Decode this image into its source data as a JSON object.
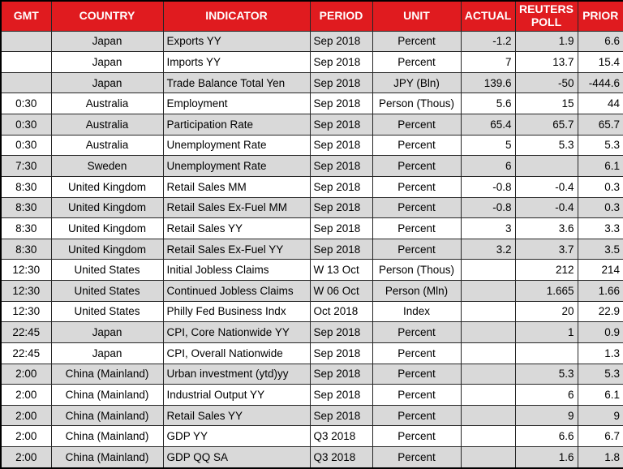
{
  "colors": {
    "header_bg": "#E01B1F",
    "header_text": "#FFFFFF",
    "row_bg": "#FFFFFF",
    "row_alt_bg": "#D9D9D9",
    "border": "#262626"
  },
  "table": {
    "columns": [
      {
        "key": "gmt",
        "label": "GMT"
      },
      {
        "key": "country",
        "label": "COUNTRY"
      },
      {
        "key": "indicator",
        "label": "INDICATOR"
      },
      {
        "key": "period",
        "label": "PERIOD"
      },
      {
        "key": "unit",
        "label": "UNIT"
      },
      {
        "key": "actual",
        "label": "ACTUAL"
      },
      {
        "key": "poll",
        "label": "REUTERS POLL"
      },
      {
        "key": "prior",
        "label": "PRIOR"
      }
    ],
    "rows": [
      {
        "gmt": "",
        "country": "Japan",
        "indicator": "Exports YY",
        "period": "Sep 2018",
        "unit": "Percent",
        "actual": "-1.2",
        "poll": "1.9",
        "prior": "6.6"
      },
      {
        "gmt": "",
        "country": "Japan",
        "indicator": "Imports YY",
        "period": "Sep 2018",
        "unit": "Percent",
        "actual": "7",
        "poll": "13.7",
        "prior": "15.4"
      },
      {
        "gmt": "",
        "country": "Japan",
        "indicator": "Trade Balance Total Yen",
        "period": "Sep 2018",
        "unit": "JPY (Bln)",
        "actual": "139.6",
        "poll": "-50",
        "prior": "-444.6"
      },
      {
        "gmt": "0:30",
        "country": "Australia",
        "indicator": "Employment",
        "period": "Sep 2018",
        "unit": "Person (Thous)",
        "actual": "5.6",
        "poll": "15",
        "prior": "44"
      },
      {
        "gmt": "0:30",
        "country": "Australia",
        "indicator": "Participation Rate",
        "period": "Sep 2018",
        "unit": "Percent",
        "actual": "65.4",
        "poll": "65.7",
        "prior": "65.7"
      },
      {
        "gmt": "0:30",
        "country": "Australia",
        "indicator": "Unemployment Rate",
        "period": "Sep 2018",
        "unit": "Percent",
        "actual": "5",
        "poll": "5.3",
        "prior": "5.3"
      },
      {
        "gmt": "7:30",
        "country": "Sweden",
        "indicator": "Unemployment Rate",
        "period": "Sep 2018",
        "unit": "Percent",
        "actual": "6",
        "poll": "",
        "prior": "6.1"
      },
      {
        "gmt": "8:30",
        "country": "United Kingdom",
        "indicator": "Retail Sales MM",
        "period": "Sep 2018",
        "unit": "Percent",
        "actual": "-0.8",
        "poll": "-0.4",
        "prior": "0.3"
      },
      {
        "gmt": "8:30",
        "country": "United Kingdom",
        "indicator": "Retail Sales Ex-Fuel MM",
        "period": "Sep 2018",
        "unit": "Percent",
        "actual": "-0.8",
        "poll": "-0.4",
        "prior": "0.3"
      },
      {
        "gmt": "8:30",
        "country": "United Kingdom",
        "indicator": "Retail Sales YY",
        "period": "Sep 2018",
        "unit": "Percent",
        "actual": "3",
        "poll": "3.6",
        "prior": "3.3"
      },
      {
        "gmt": "8:30",
        "country": "United Kingdom",
        "indicator": "Retail Sales Ex-Fuel YY",
        "period": "Sep 2018",
        "unit": "Percent",
        "actual": "3.2",
        "poll": "3.7",
        "prior": "3.5"
      },
      {
        "gmt": "12:30",
        "country": "United States",
        "indicator": "Initial Jobless Claims",
        "period": "W 13 Oct",
        "unit": "Person (Thous)",
        "actual": "",
        "poll": "212",
        "prior": "214"
      },
      {
        "gmt": "12:30",
        "country": "United States",
        "indicator": "Continued Jobless Claims",
        "period": "W 06 Oct",
        "unit": "Person (Mln)",
        "actual": "",
        "poll": "1.665",
        "prior": "1.66"
      },
      {
        "gmt": "12:30",
        "country": "United States",
        "indicator": "Philly Fed Business Indx",
        "period": "Oct 2018",
        "unit": "Index",
        "actual": "",
        "poll": "20",
        "prior": "22.9"
      },
      {
        "gmt": "22:45",
        "country": "Japan",
        "indicator": "CPI, Core Nationwide YY",
        "period": "Sep 2018",
        "unit": "Percent",
        "actual": "",
        "poll": "1",
        "prior": "0.9"
      },
      {
        "gmt": "22:45",
        "country": "Japan",
        "indicator": "CPI, Overall Nationwide",
        "period": "Sep 2018",
        "unit": "Percent",
        "actual": "",
        "poll": "",
        "prior": "1.3"
      },
      {
        "gmt": "2:00",
        "country": "China (Mainland)",
        "indicator": "Urban investment (ytd)yy",
        "period": "Sep 2018",
        "unit": "Percent",
        "actual": "",
        "poll": "5.3",
        "prior": "5.3"
      },
      {
        "gmt": "2:00",
        "country": "China (Mainland)",
        "indicator": "Industrial Output YY",
        "period": "Sep 2018",
        "unit": "Percent",
        "actual": "",
        "poll": "6",
        "prior": "6.1"
      },
      {
        "gmt": "2:00",
        "country": "China (Mainland)",
        "indicator": "Retail Sales YY",
        "period": "Sep 2018",
        "unit": "Percent",
        "actual": "",
        "poll": "9",
        "prior": "9"
      },
      {
        "gmt": "2:00",
        "country": "China (Mainland)",
        "indicator": "GDP YY",
        "period": "Q3 2018",
        "unit": "Percent",
        "actual": "",
        "poll": "6.6",
        "prior": "6.7"
      },
      {
        "gmt": "2:00",
        "country": "China (Mainland)",
        "indicator": "GDP QQ SA",
        "period": "Q3 2018",
        "unit": "Percent",
        "actual": "",
        "poll": "1.6",
        "prior": "1.8"
      }
    ]
  }
}
